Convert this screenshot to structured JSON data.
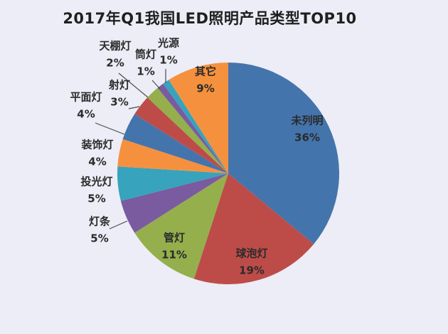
{
  "page": {
    "background_color": "#ecedf6"
  },
  "chart_data": {
    "type": "pie",
    "title": "2017年Q1我国LED照明产品类型TOP10",
    "start_angle_deg": 0,
    "direction": "clockwise",
    "legend_position": "none",
    "label_format": "name_and_percent",
    "slices": [
      {
        "name": "未列明",
        "value": 36,
        "pct_label": "36%",
        "color": "#4474ac",
        "label_placement": "inside"
      },
      {
        "name": "球泡灯",
        "value": 19,
        "pct_label": "19%",
        "color": "#bd4c49",
        "label_placement": "inside"
      },
      {
        "name": "管灯",
        "value": 11,
        "pct_label": "11%",
        "color": "#94af4c",
        "label_placement": "inside"
      },
      {
        "name": "灯条",
        "value": 5,
        "pct_label": "5%",
        "color": "#7a5ba0",
        "label_placement": "outside"
      },
      {
        "name": "投光灯",
        "value": 5,
        "pct_label": "5%",
        "color": "#37a3bd",
        "label_placement": "outside"
      },
      {
        "name": "装饰灯",
        "value": 4,
        "pct_label": "4%",
        "color": "#f5913e",
        "label_placement": "outside"
      },
      {
        "name": "平面灯",
        "value": 4,
        "pct_label": "4%",
        "color": "#4474ac",
        "label_placement": "outside"
      },
      {
        "name": "射灯",
        "value": 3,
        "pct_label": "3%",
        "color": "#bd4c49",
        "label_placement": "outside"
      },
      {
        "name": "天棚灯",
        "value": 2,
        "pct_label": "2%",
        "color": "#94af4c",
        "label_placement": "outside"
      },
      {
        "name": "筒灯",
        "value": 1,
        "pct_label": "1%",
        "color": "#7a5ba0",
        "label_placement": "outside"
      },
      {
        "name": "光源",
        "value": 1,
        "pct_label": "1%",
        "color": "#37a3bd",
        "label_placement": "outside"
      },
      {
        "name": "其它",
        "value": 9,
        "pct_label": "9%",
        "color": "#f5913e",
        "label_placement": "inside"
      }
    ]
  }
}
